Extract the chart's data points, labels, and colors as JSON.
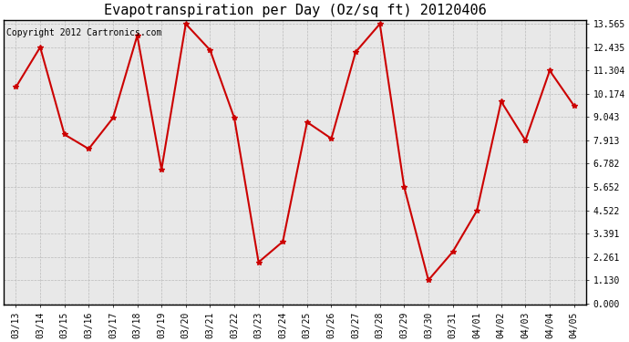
{
  "title": "Evapotranspiration per Day (Oz/sq ft) 20120406",
  "copyright": "Copyright 2012 Cartronics.com",
  "dates": [
    "03/13",
    "03/14",
    "03/15",
    "03/16",
    "03/17",
    "03/18",
    "03/19",
    "03/20",
    "03/21",
    "03/22",
    "03/23",
    "03/24",
    "03/25",
    "03/26",
    "03/27",
    "03/28",
    "03/29",
    "03/30",
    "03/31",
    "04/01",
    "04/02",
    "04/03",
    "04/04",
    "04/05"
  ],
  "values": [
    10.5,
    12.435,
    8.2,
    7.5,
    9.0,
    13.0,
    6.5,
    13.565,
    12.3,
    9.0,
    2.0,
    3.0,
    8.8,
    8.0,
    12.2,
    13.565,
    5.65,
    1.13,
    2.5,
    4.5,
    9.8,
    7.913,
    11.3,
    9.6
  ],
  "line_color": "#cc0000",
  "marker": "*",
  "marker_color": "#cc0000",
  "background_color": "#ffffff",
  "plot_bg_color": "#e8e8e8",
  "grid_color": "#bbbbbb",
  "ytick_values": [
    0.0,
    1.13,
    2.261,
    3.391,
    4.522,
    5.652,
    6.782,
    7.913,
    9.043,
    10.174,
    11.304,
    12.435,
    13.565
  ],
  "ymin": 0.0,
  "ymax": 13.565,
  "title_fontsize": 11,
  "copyright_fontsize": 7,
  "tick_fontsize": 7,
  "line_width": 1.5,
  "marker_size": 4
}
